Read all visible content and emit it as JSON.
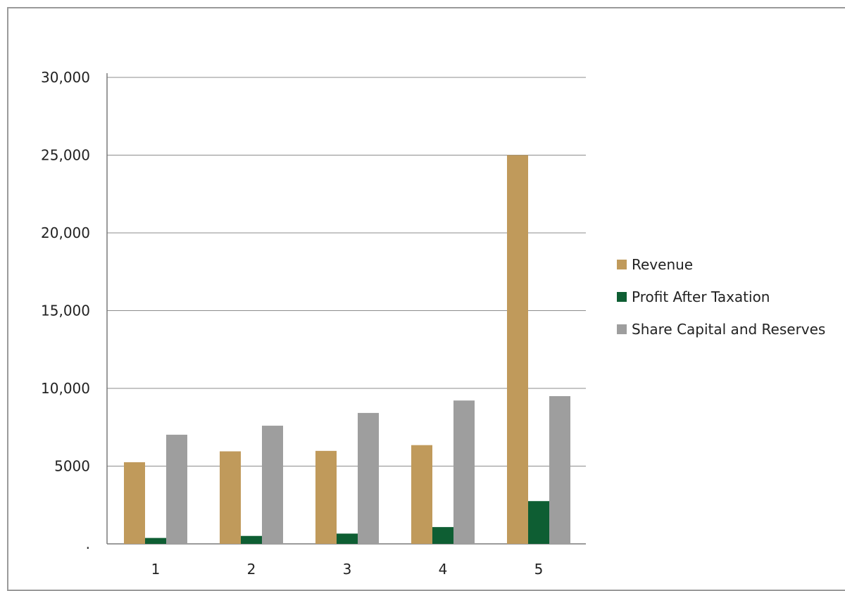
{
  "chart_data": {
    "type": "bar",
    "categories": [
      "1",
      "2",
      "3",
      "4",
      "5"
    ],
    "series": [
      {
        "name": "Revenue",
        "values": [
          5250,
          5950,
          5980,
          6350,
          25000
        ],
        "color": "#c09a5b"
      },
      {
        "name": "Profit After Taxation",
        "values": [
          380,
          510,
          660,
          1080,
          2750
        ],
        "color": "#0e5e33"
      },
      {
        "name": "Share Capital and Reserves",
        "values": [
          7020,
          7600,
          8420,
          9220,
          9500
        ],
        "color": "#9e9e9e"
      }
    ],
    "yticks": [
      {
        "value": 0,
        "label": "."
      },
      {
        "value": 5000,
        "label": "5000"
      },
      {
        "value": 10000,
        "label": "10,000"
      },
      {
        "value": 15000,
        "label": "15,000"
      },
      {
        "value": 20000,
        "label": "20,000"
      },
      {
        "value": 25000,
        "label": "25,000"
      },
      {
        "value": 30000,
        "label": "30,000"
      }
    ],
    "ylim": [
      0,
      30000
    ],
    "grid": true,
    "legend_position": "right",
    "title": "",
    "xlabel": "",
    "ylabel": ""
  }
}
